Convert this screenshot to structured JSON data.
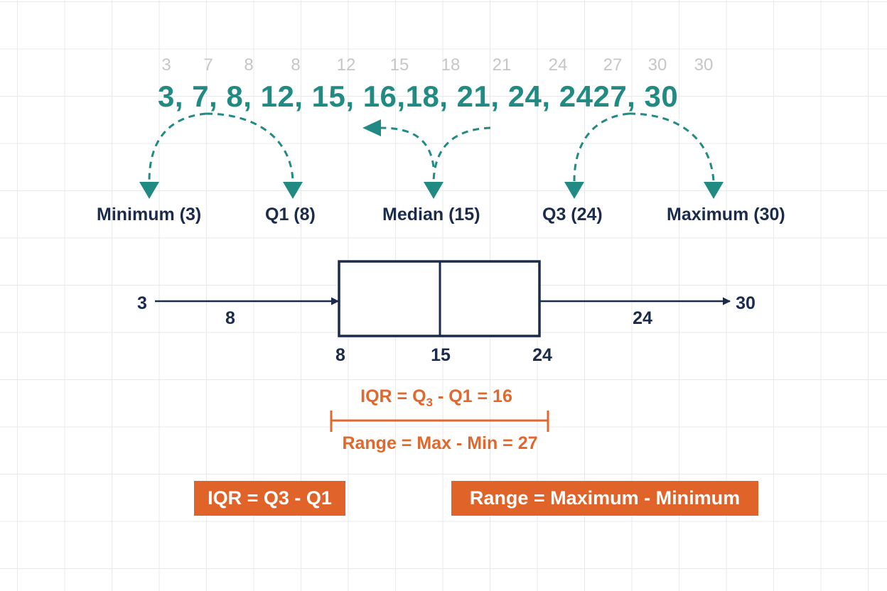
{
  "ghost_values": [
    "3",
    "7",
    "8",
    "8",
    "12",
    "15",
    "18",
    "21",
    "24",
    "27",
    "30",
    "30"
  ],
  "sequence_text": "3, 7, 8, 12, 15, 16,18, 21, 24, 2427, 30",
  "labels": {
    "minimum": "Minimum (3)",
    "q1": "Q1 (8)",
    "median": "Median (15)",
    "q3": "Q3 (24)",
    "maximum": "Maximum (30)"
  },
  "boxplot": {
    "min": "3",
    "max": "30",
    "left_whisker_label": "8",
    "right_whisker_label": "24",
    "q1_tick": "8",
    "median_tick": "15",
    "q3_tick": "24"
  },
  "iqr_line": {
    "prefix": "IQR = Q",
    "sub": "3",
    "suffix": " - Q1 = 16"
  },
  "range_line": "Range = Max - Min = 27",
  "formulas": {
    "iqr": "IQR = Q3 - Q1",
    "range": "Range = Maximum - Minimum"
  },
  "colors": {
    "teal": "#218b83",
    "navy": "#1b2b4b",
    "orange": "#e1672c",
    "grid": "#e9e9e9"
  }
}
